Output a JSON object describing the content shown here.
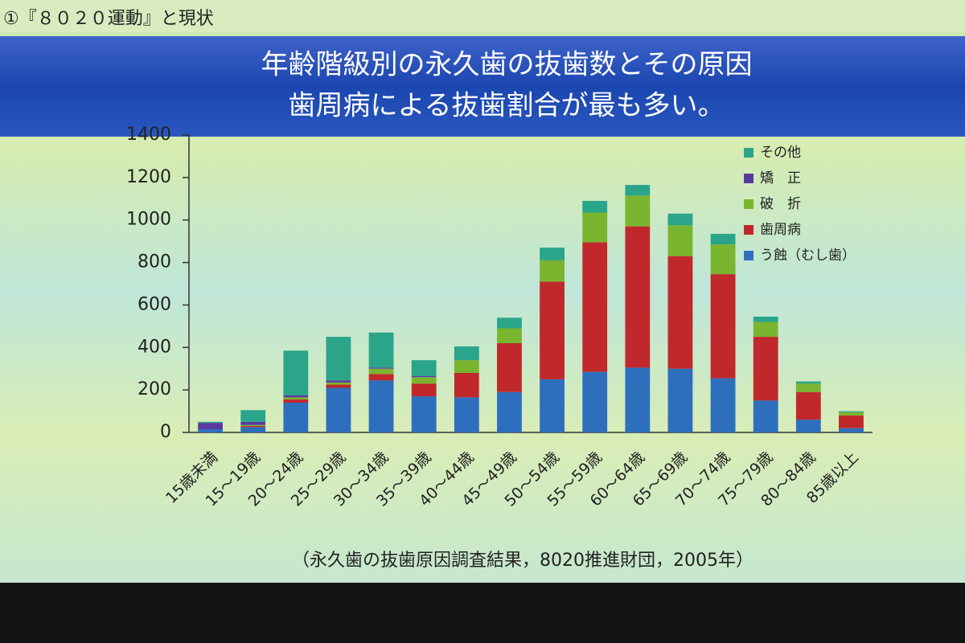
{
  "header": "①『８０２０運動』と現状",
  "chart_data": {
    "type": "stacked-bar",
    "title": "年齢階級別の永久歯の抜歯数とその原因",
    "subtitle": "歯周病による抜歯割合が最も多い。",
    "note": "（永久歯の抜歯原因調査結果，8020推進財団，2005年）",
    "categories": [
      "15歳未満",
      "15～19歳",
      "20～24歳",
      "25～29歳",
      "30～34歳",
      "35～39歳",
      "40～44歳",
      "45～49歳",
      "50～54歳",
      "55～59歳",
      "60～64歳",
      "65～69歳",
      "70～74歳",
      "75～79歳",
      "80～84歳",
      "85歳以上"
    ],
    "series": [
      {
        "name": "う蝕（むし歯）",
        "color": "#2e6fbd",
        "values": [
          15,
          25,
          140,
          210,
          245,
          170,
          165,
          190,
          250,
          285,
          305,
          300,
          255,
          150,
          60,
          20
        ]
      },
      {
        "name": "歯周病",
        "color": "#c0282b",
        "values": [
          0,
          5,
          15,
          15,
          30,
          60,
          115,
          230,
          460,
          610,
          665,
          530,
          490,
          300,
          130,
          60
        ]
      },
      {
        "name": "破　折",
        "color": "#7ab52f",
        "values": [
          0,
          5,
          10,
          10,
          25,
          30,
          60,
          70,
          100,
          140,
          145,
          145,
          140,
          70,
          40,
          15
        ]
      },
      {
        "name": "矯　正",
        "color": "#5b3aa0",
        "values": [
          30,
          15,
          10,
          10,
          5,
          5,
          0,
          0,
          0,
          0,
          0,
          0,
          0,
          0,
          0,
          0
        ]
      },
      {
        "name": "その他",
        "color": "#2aa58a",
        "values": [
          5,
          55,
          210,
          205,
          165,
          75,
          65,
          50,
          60,
          55,
          50,
          55,
          50,
          25,
          10,
          5
        ]
      }
    ],
    "ylim": [
      0,
      1400
    ],
    "yticks": [
      0,
      200,
      400,
      600,
      800,
      1000,
      1200,
      1400
    ],
    "grid": false,
    "legend": "upper right"
  }
}
